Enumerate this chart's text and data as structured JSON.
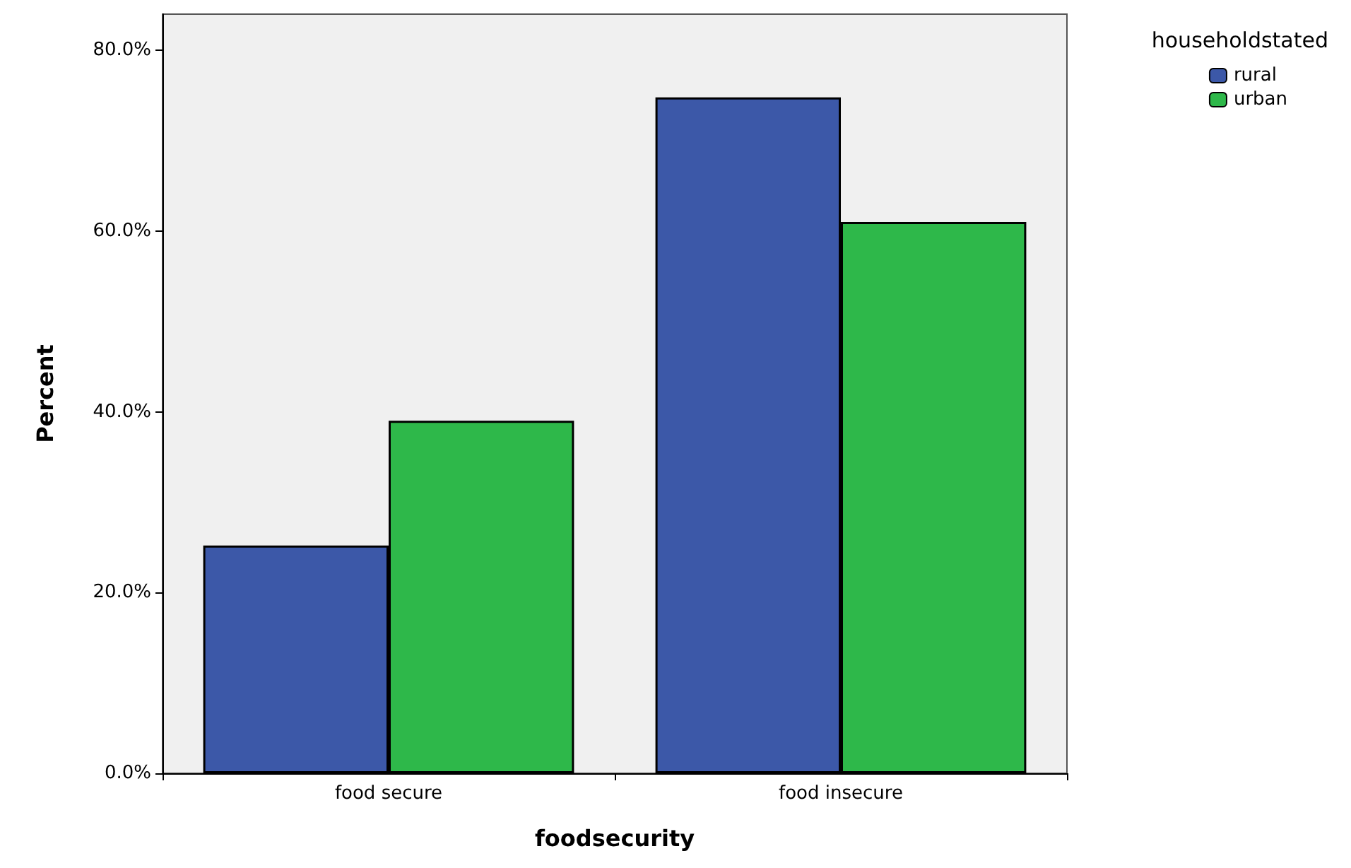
{
  "chart_data": {
    "type": "bar",
    "xlabel": "foodsecurity",
    "ylabel": "Percent",
    "legend_title": "householdstated",
    "categories": [
      "food secure",
      "food insecure"
    ],
    "series": [
      {
        "name": "rural",
        "color": "#3c58a8",
        "values": [
          25.2,
          74.8
        ]
      },
      {
        "name": "urban",
        "color": "#2eb84a",
        "values": [
          39.0,
          61.0
        ]
      }
    ],
    "ylim": [
      0,
      84
    ],
    "yticks": [
      {
        "value": 0,
        "label": "0.0%"
      },
      {
        "value": 20,
        "label": "20.0%"
      },
      {
        "value": 40,
        "label": "40.0%"
      },
      {
        "value": 60,
        "label": "60.0%"
      },
      {
        "value": 80,
        "label": "80.0%"
      }
    ],
    "grid": false,
    "legend": "top right"
  }
}
